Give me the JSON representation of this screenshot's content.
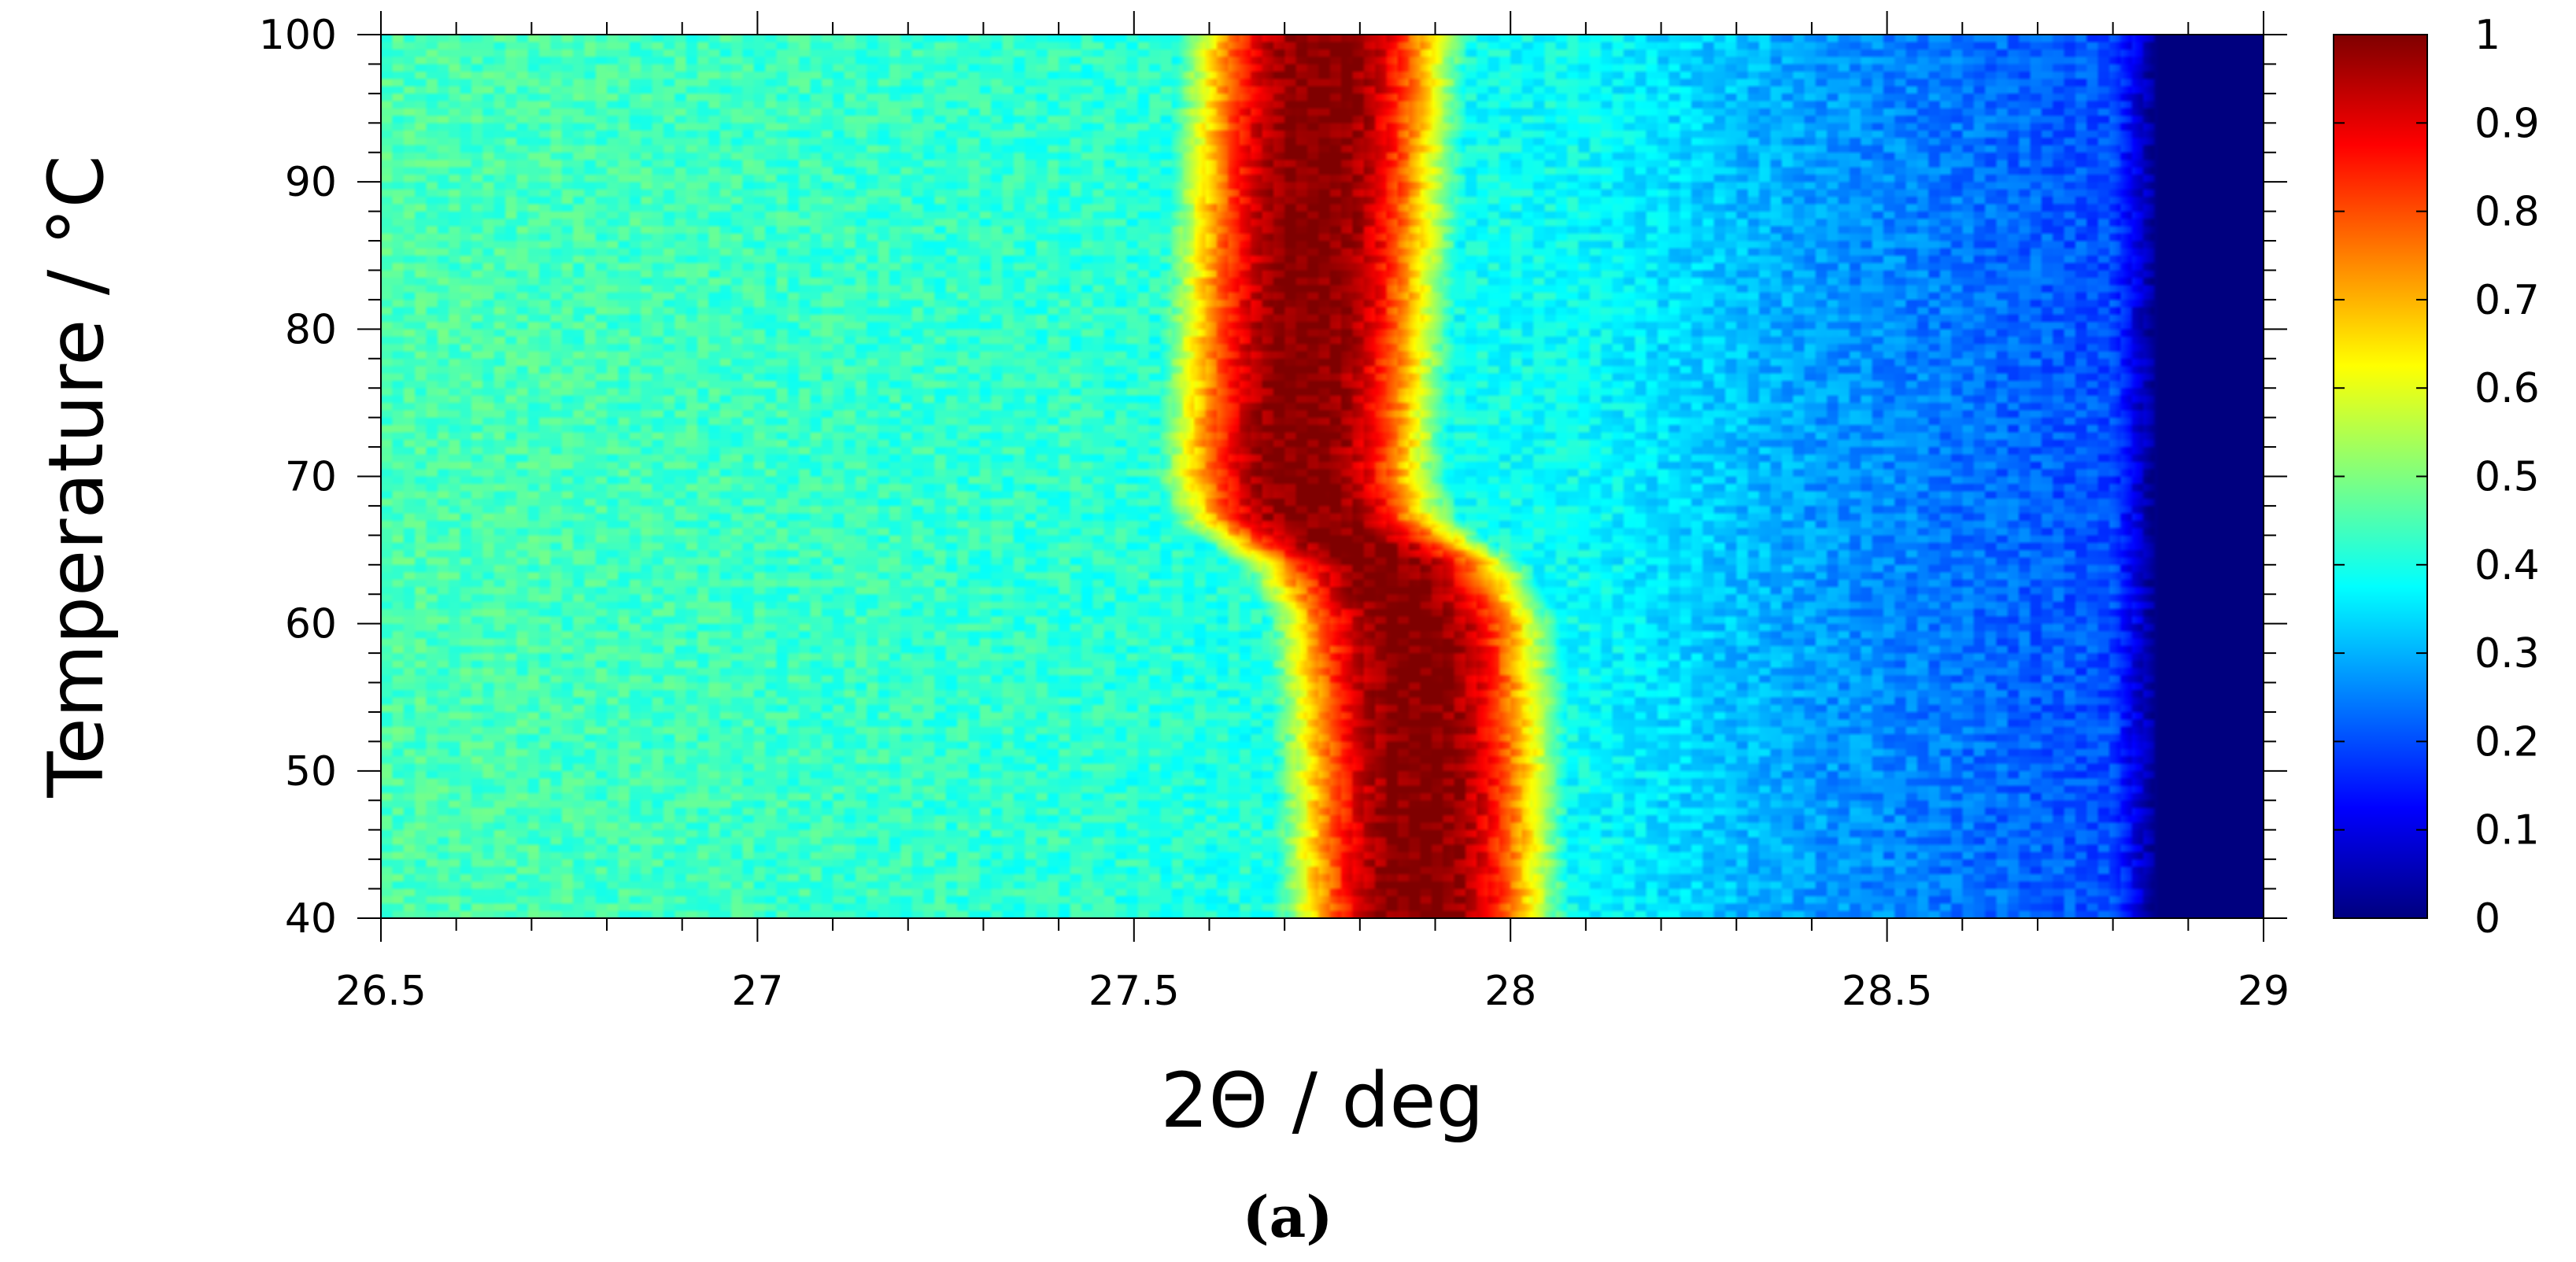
{
  "chart_data": {
    "type": "heatmap",
    "title": "",
    "xlabel": "2Θ / deg",
    "ylabel": "Temperature / °C",
    "panel_label": "(a)",
    "xlim": [
      26.5,
      29
    ],
    "ylim": [
      40,
      100
    ],
    "x_ticks": [
      26.5,
      27,
      27.5,
      28,
      28.5,
      29
    ],
    "x_tick_labels": [
      "26.5",
      "27",
      "27.5",
      "28",
      "28.5",
      "29"
    ],
    "y_ticks": [
      40,
      50,
      60,
      70,
      80,
      90,
      100
    ],
    "y_tick_labels": [
      "40",
      "50",
      "60",
      "70",
      "80",
      "90",
      "100"
    ],
    "colorbar": {
      "range": [
        0,
        1
      ],
      "ticks": [
        0,
        0.1,
        0.2,
        0.3,
        0.4,
        0.5,
        0.6,
        0.7,
        0.8,
        0.9,
        1
      ],
      "tick_labels": [
        "0",
        "0.1",
        "0.2",
        "0.3",
        "0.4",
        "0.5",
        "0.6",
        "0.7",
        "0.8",
        "0.9",
        "1"
      ],
      "colormap": "jet"
    },
    "colormap_stops": [
      "#00007f",
      "#0000ff",
      "#007fff",
      "#00ffff",
      "#7fff7f",
      "#ffff00",
      "#ff7f00",
      "#ff0000",
      "#7f0000"
    ],
    "grid": false,
    "peak_center_deg": [
      {
        "temperature": 40,
        "two_theta": 27.88
      },
      {
        "temperature": 50,
        "two_theta": 27.88
      },
      {
        "temperature": 60,
        "two_theta": 27.87
      },
      {
        "temperature": 64,
        "two_theta": 27.83
      },
      {
        "temperature": 67,
        "two_theta": 27.74
      },
      {
        "temperature": 70,
        "two_theta": 27.72
      },
      {
        "temperature": 80,
        "two_theta": 27.73
      },
      {
        "temperature": 90,
        "two_theta": 27.74
      },
      {
        "temperature": 100,
        "two_theta": 27.75
      }
    ],
    "background_intensity": [
      {
        "two_theta": 26.5,
        "value": 0.45
      },
      {
        "two_theta": 27.4,
        "value": 0.42
      },
      {
        "two_theta": 28.1,
        "value": 0.38
      },
      {
        "two_theta": 28.4,
        "value": 0.28
      },
      {
        "two_theta": 28.8,
        "value": 0.2
      },
      {
        "two_theta": 28.86,
        "value": 0.0
      },
      {
        "two_theta": 29.0,
        "value": 0.0
      }
    ],
    "peak_max_intensity": 1.0,
    "peak_halfwidth_deg": 0.2
  }
}
